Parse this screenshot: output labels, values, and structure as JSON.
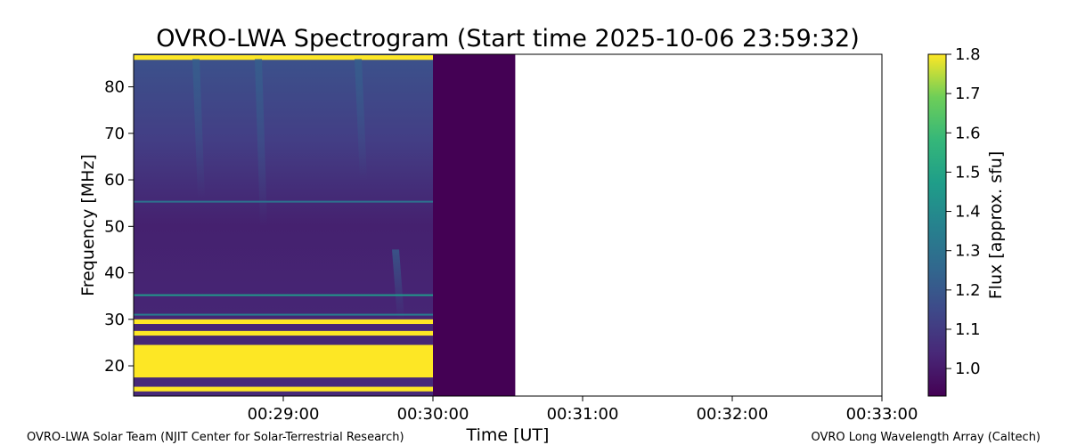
{
  "chart_data": {
    "type": "heatmap",
    "title": "OVRO-LWA Spectrogram (Start time 2025-10-06 23:59:32)",
    "xlabel": "Time [UT]",
    "ylabel": "Frequency [MHz]",
    "xlim": [
      "00:28:00",
      "00:33:00"
    ],
    "ylim": [
      13.5,
      87
    ],
    "x_ticks": [
      "00:29:00",
      "00:30:00",
      "00:31:00",
      "00:32:00",
      "00:33:00"
    ],
    "y_ticks": [
      20,
      30,
      40,
      50,
      60,
      70,
      80
    ],
    "data_time_range": [
      "00:28:00",
      "00:30:00"
    ],
    "gap_time_range": [
      "00:30:00",
      "00:30:33"
    ],
    "background_level": 0.97,
    "colorbar": {
      "label": "Flux [approx. sfu]",
      "min": 0.93,
      "max": 1.8,
      "ticks": [
        1.0,
        1.1,
        1.2,
        1.3,
        1.4,
        1.5,
        1.6,
        1.7,
        1.8
      ],
      "colormap": "viridis"
    },
    "bursts": [
      {
        "time": "00:28:25",
        "f_top": 86,
        "f_bottom": 56,
        "level": 1.22
      },
      {
        "time": "00:28:50",
        "f_top": 86,
        "f_bottom": 50,
        "level": 1.22
      },
      {
        "time": "00:29:30",
        "f_top": 86,
        "f_bottom": 60,
        "level": 1.12
      },
      {
        "time": "00:29:45",
        "f_top": 45,
        "f_bottom": 30,
        "level": 1.15
      }
    ],
    "saturated_bands": [
      [
        14.5,
        15.5
      ],
      [
        17.5,
        24.5
      ],
      [
        26.5,
        27.5
      ],
      [
        29.0,
        30.0
      ]
    ],
    "lines": [
      {
        "freq": 55.3,
        "level": 1.3
      },
      {
        "freq": 35.2,
        "level": 1.45
      },
      {
        "freq": 31.0,
        "level": 1.35
      }
    ]
  },
  "footer": {
    "left": "OVRO-LWA Solar Team (NJIT Center for Solar-Terrestrial Research)",
    "right": "OVRO Long Wavelength Array (Caltech)"
  },
  "colors": {
    "viridis_dark": "#440154",
    "viridis_yellow": "#fde725"
  }
}
